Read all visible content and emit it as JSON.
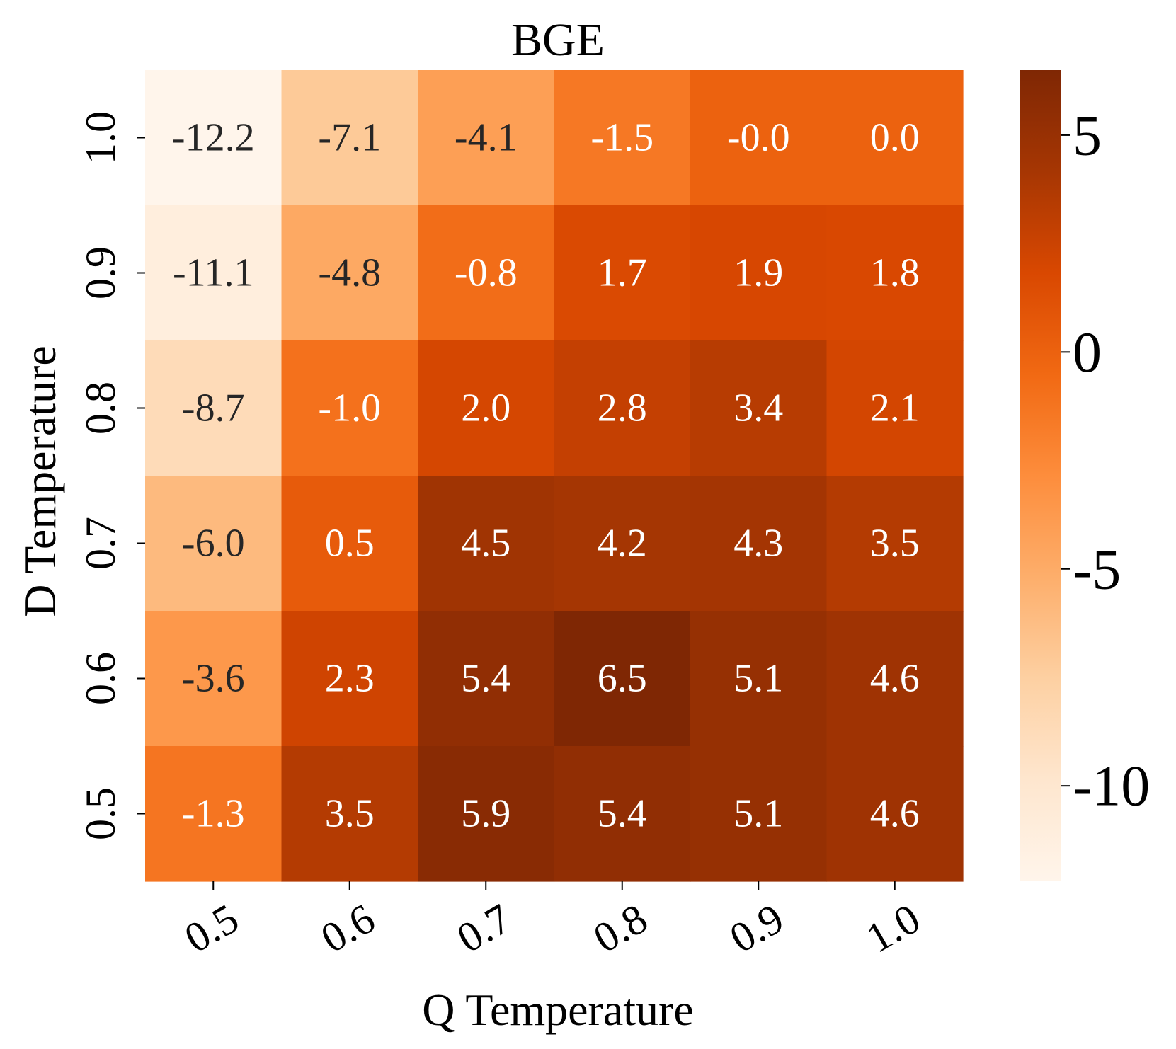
{
  "chart_data": {
    "type": "heatmap",
    "title": "BGE",
    "xlabel": "Q Temperature",
    "ylabel": "D Temperature",
    "x_categories": [
      "0.5",
      "0.6",
      "0.7",
      "0.8",
      "0.9",
      "1.0"
    ],
    "y_categories": [
      "1.0",
      "0.9",
      "0.8",
      "0.7",
      "0.6",
      "0.5"
    ],
    "values": [
      [
        -12.2,
        -7.1,
        -4.1,
        -1.5,
        -0.0,
        0.0
      ],
      [
        -11.1,
        -4.8,
        -0.8,
        1.7,
        1.9,
        1.8
      ],
      [
        -8.7,
        -1.0,
        2.0,
        2.8,
        3.4,
        2.1
      ],
      [
        -6.0,
        0.5,
        4.5,
        4.2,
        4.3,
        3.5
      ],
      [
        -3.6,
        2.3,
        5.4,
        6.5,
        5.1,
        4.6
      ],
      [
        -1.3,
        3.5,
        5.9,
        5.4,
        5.1,
        4.6
      ]
    ],
    "cell_labels": [
      [
        "-12.2",
        "-7.1",
        "-4.1",
        "-1.5",
        "-0.0",
        "0.0"
      ],
      [
        "-11.1",
        "-4.8",
        "-0.8",
        "1.7",
        "1.9",
        "1.8"
      ],
      [
        "-8.7",
        "-1.0",
        "2.0",
        "2.8",
        "3.4",
        "2.1"
      ],
      [
        "-6.0",
        "0.5",
        "4.5",
        "4.2",
        "4.3",
        "3.5"
      ],
      [
        "-3.6",
        "2.3",
        "5.4",
        "6.5",
        "5.1",
        "4.6"
      ],
      [
        "-1.3",
        "3.5",
        "5.9",
        "5.4",
        "5.1",
        "4.6"
      ]
    ],
    "colormap": "Oranges",
    "colorbar": {
      "range": [
        -12.2,
        6.5
      ],
      "ticks": [
        5,
        0,
        -5,
        -10
      ],
      "tick_labels": [
        "5",
        "0",
        "-5",
        "-10"
      ],
      "placement": "right"
    },
    "colors": {
      "low": "#fff5eb",
      "high": "#7f2704",
      "text_dark": "#262626",
      "text_light": "#ffffff"
    }
  }
}
